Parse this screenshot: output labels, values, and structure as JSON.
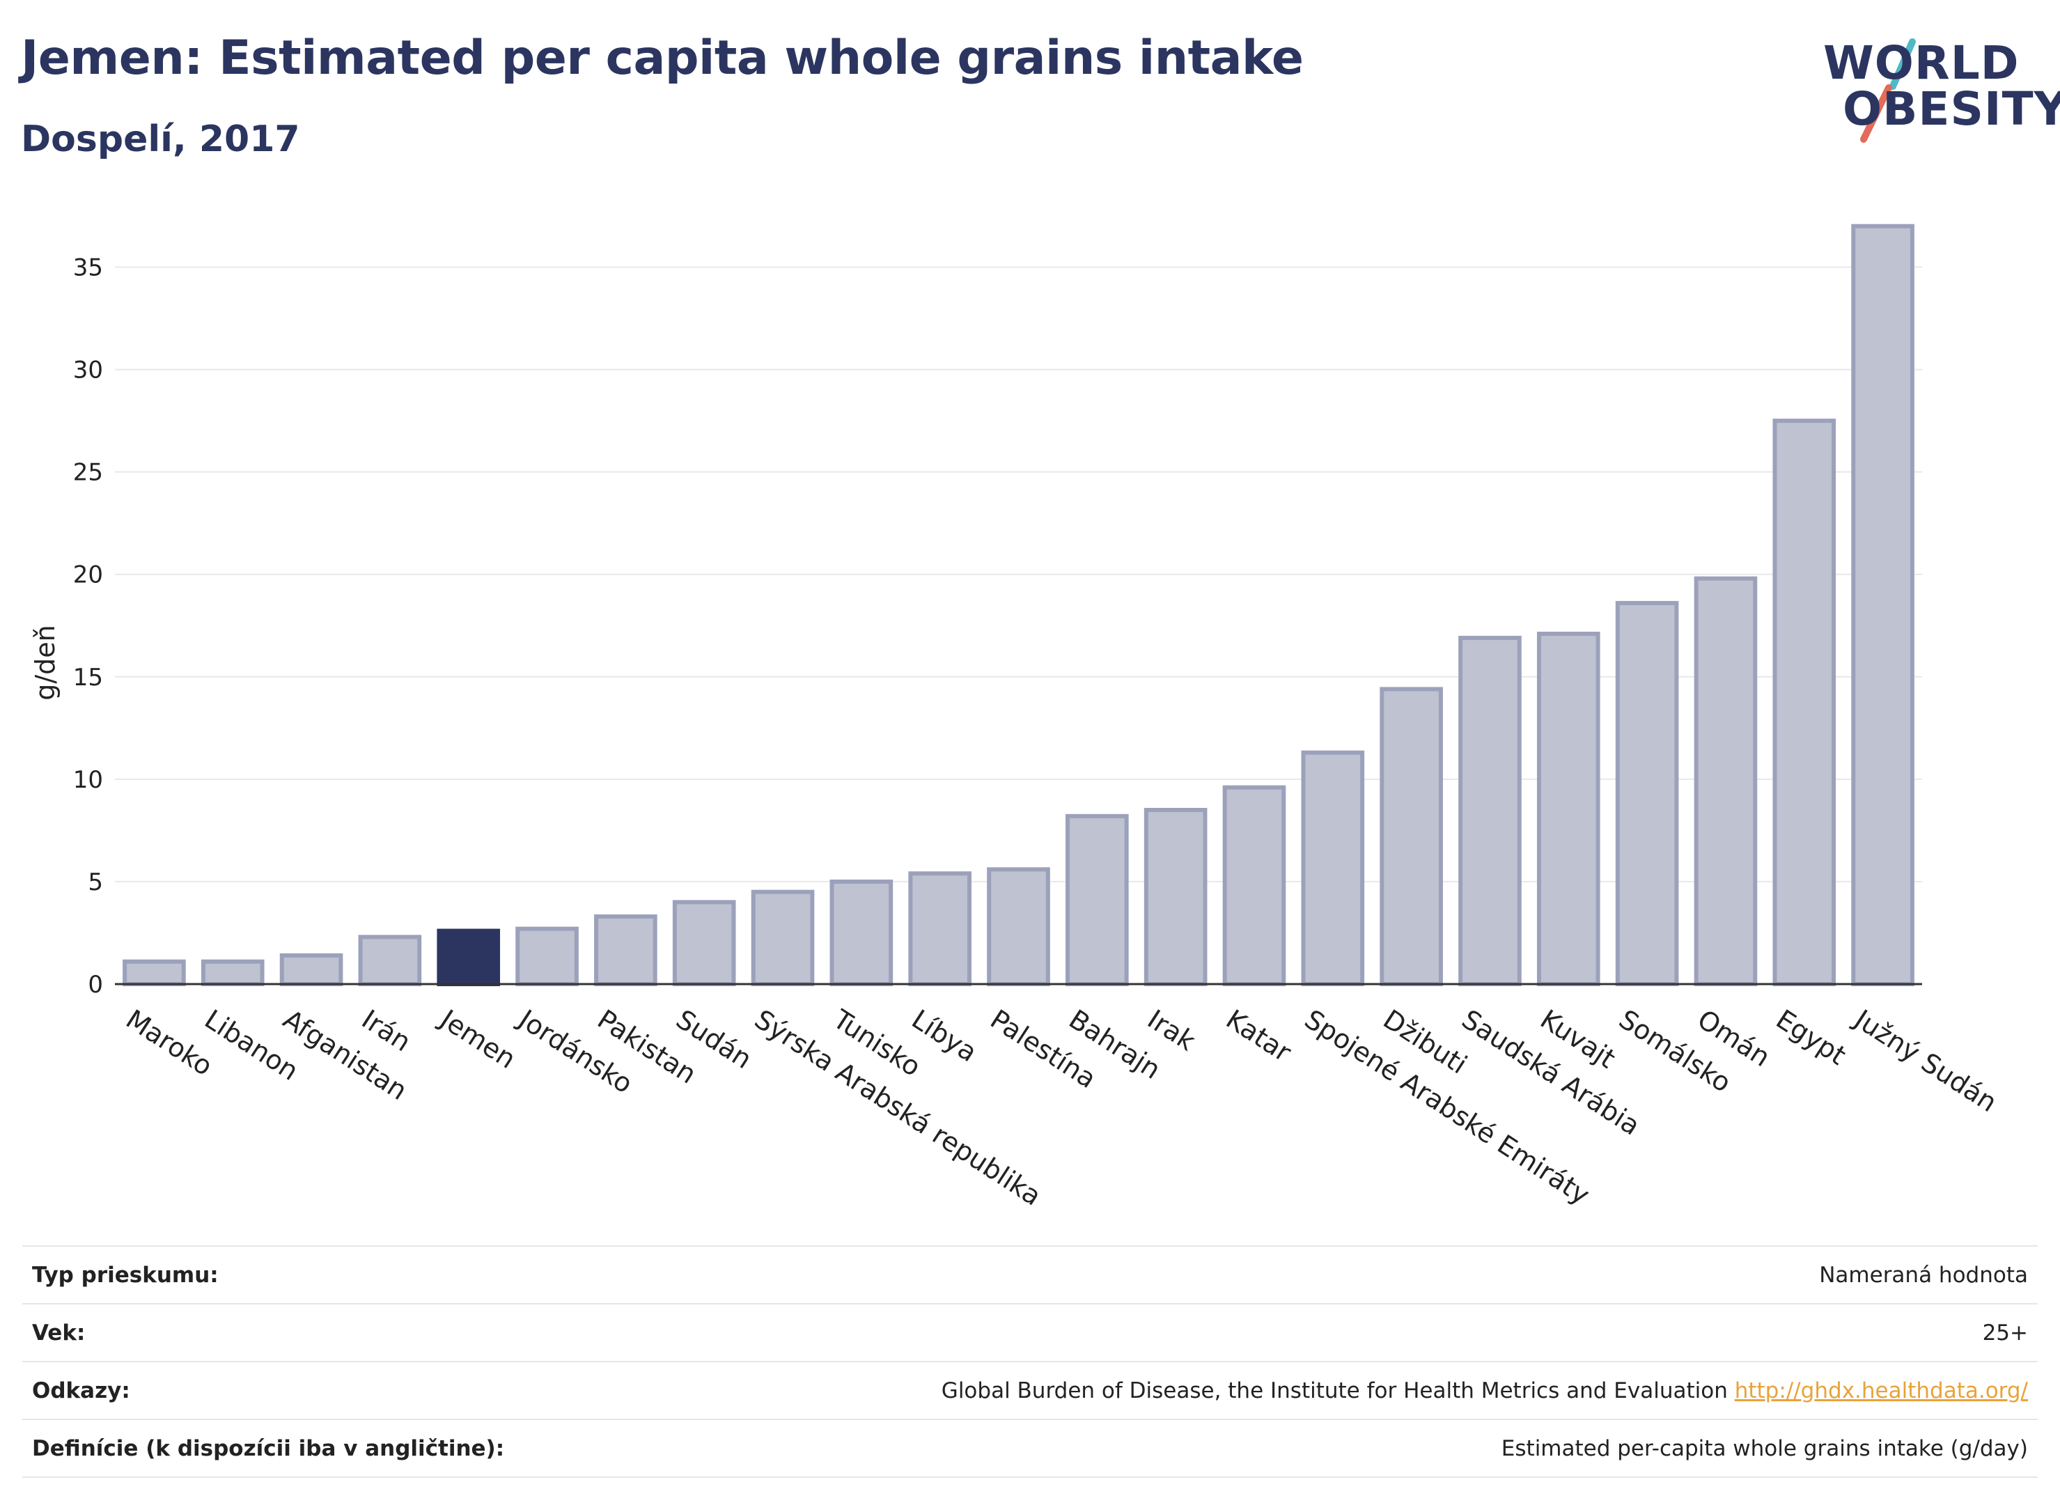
{
  "header": {
    "title": "Jemen: Estimated per capita whole grains intake",
    "subtitle": "Dospelí, 2017"
  },
  "logo": {
    "line1": "WORLD",
    "line2": "OBESITY",
    "slash_colors": [
      "#4fb9c5",
      "#e26b5a"
    ]
  },
  "colors": {
    "highlight": "#2b3560",
    "bar_fill": "#bfc2d0",
    "bar_stroke": "#9ca1bb",
    "axis": "#333333",
    "grid": "#e8e8e8"
  },
  "chart_data": {
    "type": "bar",
    "title": "Jemen: Estimated per capita whole grains intake",
    "subtitle": "Dospelí, 2017",
    "xlabel": "",
    "ylabel": "g/deň",
    "ylim": [
      0,
      37.5
    ],
    "yticks": [
      0,
      5,
      10,
      15,
      20,
      25,
      30,
      35
    ],
    "grid": true,
    "highlight": "Jemen",
    "categories": [
      "Maroko",
      "Libanon",
      "Afganistan",
      "Irán",
      "Jemen",
      "Jordánsko",
      "Pakistan",
      "Sudán",
      "Sýrska Arabská republika",
      "Tunisko",
      "Líbya",
      "Palestína",
      "Bahrajn",
      "Irak",
      "Katar",
      "Spojené Arabské Emiráty",
      "Džibuti",
      "Saudská Arábia",
      "Kuvajt",
      "Somálsko",
      "Omán",
      "Egypt",
      "Južný Sudán"
    ],
    "values": [
      1.1,
      1.1,
      1.4,
      2.3,
      2.6,
      2.7,
      3.3,
      4.0,
      4.5,
      5.0,
      5.4,
      5.6,
      8.2,
      8.5,
      9.6,
      11.3,
      14.4,
      16.9,
      17.1,
      18.6,
      19.8,
      27.5,
      37.0
    ]
  },
  "meta": [
    {
      "label": "Typ prieskumu:",
      "value": "Nameraná hodnota",
      "link": ""
    },
    {
      "label": "Vek:",
      "value": "25+",
      "link": ""
    },
    {
      "label": "Odkazy:",
      "value": "Global Burden of Disease, the Institute for Health Metrics and Evaluation",
      "link": "http://ghdx.healthdata.org/"
    },
    {
      "label": "Definície (k dispozícii iba v angličtine):",
      "value": "Estimated per-capita whole grains intake (g/day)",
      "link": ""
    }
  ]
}
